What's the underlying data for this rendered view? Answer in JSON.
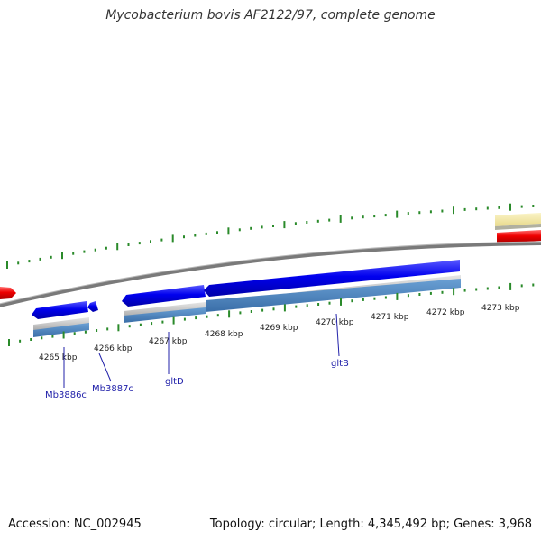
{
  "map": {
    "title": "Mycobacterium bovis AF2122/97, complete genome",
    "accession": "Accession: NC_002945",
    "summary": "Topology: circular; Length: 4,345,492 bp; Genes: 3,968"
  },
  "colors": {
    "forward_gene": "#0000ee",
    "reverse_feature": "#ee0000",
    "misc_feature": "#f0e6a0",
    "backbone": "#808080",
    "tick": "#2a8a2a",
    "cds_bar_grey": "#c0c0c0",
    "cds_bar_blue": "#4f86c0",
    "label_text": "#2222aa"
  },
  "scale_ticks": [
    {
      "label": "4265 kbp"
    },
    {
      "label": "4266 kbp"
    },
    {
      "label": "4267 kbp"
    },
    {
      "label": "4268 kbp"
    },
    {
      "label": "4269 kbp"
    },
    {
      "label": "4270 kbp"
    },
    {
      "label": "4271 kbp"
    },
    {
      "label": "4272 kbp"
    },
    {
      "label": "4273 kbp"
    }
  ],
  "gene_labels": [
    {
      "name": "Mb3886c"
    },
    {
      "name": "Mb3887c"
    },
    {
      "name": "gltD"
    },
    {
      "name": "gltB"
    }
  ]
}
